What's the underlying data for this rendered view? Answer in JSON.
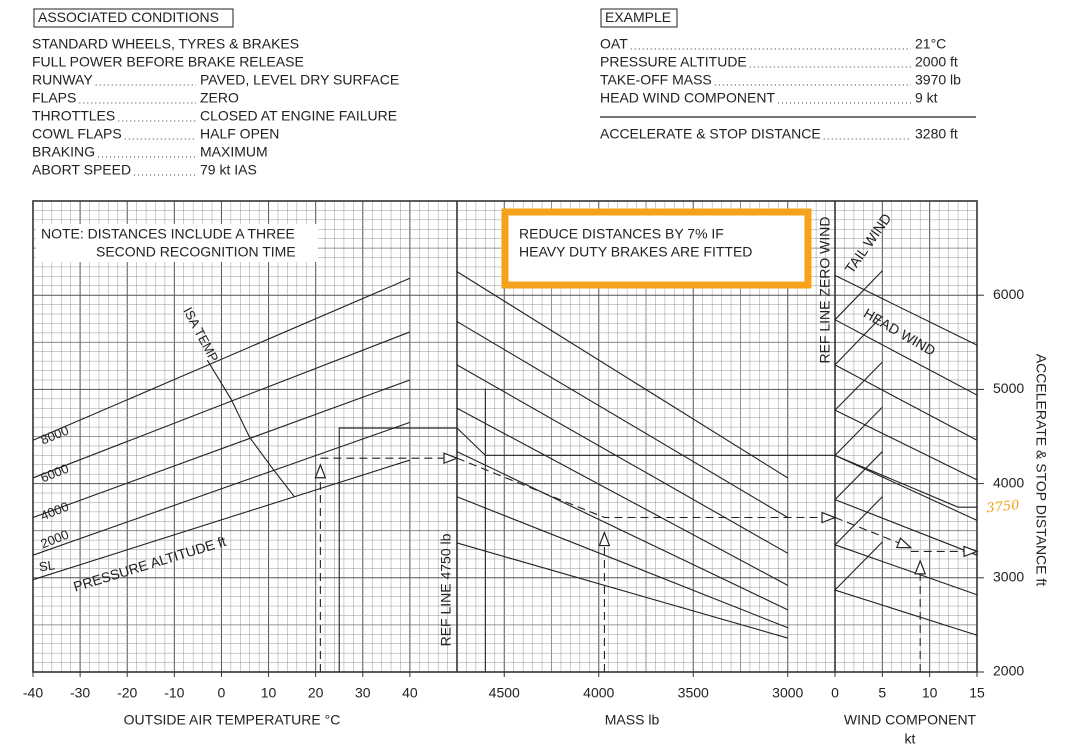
{
  "associated_conditions": {
    "title": "ASSOCIATED CONDITIONS",
    "items": [
      {
        "label": "STANDARD WHEELS, TYRES & BRAKES"
      },
      {
        "label": "FULL POWER BEFORE BRAKE RELEASE"
      },
      {
        "label": "RUNWAY",
        "value": "PAVED, LEVEL DRY SURFACE"
      },
      {
        "label": "FLAPS",
        "value": "ZERO"
      },
      {
        "label": "THROTTLES",
        "value": "CLOSED AT ENGINE FAILURE"
      },
      {
        "label": "COWL FLAPS",
        "value": "HALF OPEN"
      },
      {
        "label": "BRAKING",
        "value": "MAXIMUM"
      },
      {
        "label": "ABORT SPEED",
        "value": "79 kt  IAS"
      }
    ]
  },
  "example": {
    "title": "EXAMPLE",
    "items": [
      {
        "label": "OAT",
        "value": "21°C"
      },
      {
        "label": "PRESSURE ALTITUDE",
        "value": "2000 ft"
      },
      {
        "label": "TAKE-OFF MASS",
        "value": "3970 lb"
      },
      {
        "label": "HEAD WIND COMPONENT",
        "value": "9 kt"
      }
    ],
    "result": {
      "label": "ACCELERATE & STOP DISTANCE",
      "value": "3280 ft"
    }
  },
  "chart_data": [
    {
      "type": "line",
      "x_label": "OUTSIDE AIR TEMPERATURE  °C",
      "xlim": [
        -40,
        50
      ],
      "xticks": [
        -40,
        -30,
        -20,
        -10,
        0,
        10,
        20,
        30,
        40
      ],
      "ylim": [
        2000,
        7000
      ],
      "grid": true,
      "note": [
        "NOTE:  DISTANCES INCLUDE A THREE",
        "SECOND RECOGNITION TIME"
      ],
      "annotation": "PRESSURE ALTITUDE  ft",
      "series": [
        {
          "name": "8000",
          "color": "#222222",
          "style": "solid",
          "x": [
            -40,
            40
          ],
          "values": [
            4460,
            6180
          ]
        },
        {
          "name": "6000",
          "color": "#222222",
          "style": "solid",
          "x": [
            -40,
            40
          ],
          "values": [
            4060,
            5610
          ]
        },
        {
          "name": "4000",
          "color": "#222222",
          "style": "solid",
          "x": [
            -40,
            40
          ],
          "values": [
            3640,
            5100
          ]
        },
        {
          "name": "2000",
          "color": "#222222",
          "style": "solid",
          "x": [
            -40,
            40
          ],
          "values": [
            3240,
            4650
          ]
        },
        {
          "name": "SL",
          "color": "#222222",
          "style": "solid",
          "x": [
            -40,
            40
          ],
          "values": [
            2980,
            4250
          ]
        },
        {
          "name": "ISA TEMP",
          "color": "#222222",
          "style": "solid",
          "x": [
            -3,
            2,
            6,
            11,
            15.5
          ],
          "values": [
            5310,
            4900,
            4490,
            4150,
            3860
          ]
        },
        {
          "color": "#f5a01a",
          "style": "solid",
          "x": [
            25,
            25,
            50
          ],
          "values": [
            2000,
            4590,
            4590
          ]
        },
        {
          "color": "#222222",
          "style": "dashed",
          "x": [
            21,
            21
          ],
          "values": [
            2000,
            4200
          ]
        },
        {
          "color": "#222222",
          "style": "dashed",
          "x": [
            21,
            50
          ],
          "values": [
            4270,
            4270
          ]
        }
      ]
    },
    {
      "type": "line",
      "x_label": "MASS   lb",
      "xlim": [
        4750,
        2750
      ],
      "xticks": [
        4500,
        4000,
        3500,
        3000
      ],
      "ylim": [
        2000,
        7000
      ],
      "grid": true,
      "ref_line": "REF LINE  4750 lb",
      "note": [
        "REDUCE DISTANCES BY 7% IF",
        "HEAVY DUTY BRAKES ARE FITTED"
      ],
      "series": [
        {
          "color": "#222222",
          "style": "solid",
          "x": [
            4750,
            3000
          ],
          "values": [
            6250,
            4060
          ]
        },
        {
          "color": "#222222",
          "style": "solid",
          "x": [
            4750,
            3000
          ],
          "values": [
            5720,
            3640
          ]
        },
        {
          "color": "#222222",
          "style": "solid",
          "x": [
            4750,
            3000
          ],
          "values": [
            5260,
            3260
          ]
        },
        {
          "color": "#222222",
          "style": "solid",
          "x": [
            4750,
            3000
          ],
          "values": [
            4800,
            2920
          ]
        },
        {
          "color": "#222222",
          "style": "solid",
          "x": [
            4750,
            3000
          ],
          "values": [
            4340,
            2660
          ]
        },
        {
          "color": "#222222",
          "style": "solid",
          "x": [
            4750,
            3000
          ],
          "values": [
            3860,
            2470
          ]
        },
        {
          "color": "#222222",
          "style": "solid",
          "x": [
            4750,
            3000
          ],
          "values": [
            3370,
            2360
          ]
        },
        {
          "color": "#f5a01a",
          "style": "solid",
          "x": [
            4600,
            4600
          ],
          "values": [
            5010,
            2000
          ]
        },
        {
          "color": "#f5a01a",
          "style": "solid",
          "x": [
            4750,
            4600,
            2750
          ],
          "values": [
            4590,
            4300,
            4300
          ]
        },
        {
          "color": "#222222",
          "style": "dashed",
          "x": [
            4750,
            3970,
            2750
          ],
          "values": [
            4270,
            3640,
            3640
          ]
        },
        {
          "color": "#222222",
          "style": "dashed",
          "x": [
            3970,
            3970
          ],
          "values": [
            2000,
            3480
          ]
        }
      ]
    },
    {
      "type": "line",
      "x_label": [
        "WIND COMPONENT",
        "kt"
      ],
      "y_label": "ACCELERATE & STOP DISTANCE   ft",
      "xlim": [
        0,
        15
      ],
      "xticks": [
        0,
        5,
        10,
        15
      ],
      "ylim": [
        2000,
        7000
      ],
      "yticks": [
        2000,
        3000,
        4000,
        5000,
        6000
      ],
      "grid": true,
      "ref_line": "REF LINE  ZERO WIND",
      "annotations": [
        "TAIL WIND",
        "HEAD WIND"
      ],
      "series": [
        {
          "color": "#222222",
          "style": "solid",
          "x": [
            0,
            15
          ],
          "values": [
            6210,
            5470
          ]
        },
        {
          "color": "#222222",
          "style": "solid",
          "x": [
            0,
            15
          ],
          "values": [
            5740,
            4940
          ]
        },
        {
          "color": "#222222",
          "style": "solid",
          "x": [
            0,
            15
          ],
          "values": [
            5260,
            4460
          ]
        },
        {
          "color": "#222222",
          "style": "solid",
          "x": [
            0,
            15
          ],
          "values": [
            4780,
            4040
          ]
        },
        {
          "color": "#222222",
          "style": "solid",
          "x": [
            0,
            15
          ],
          "values": [
            4300,
            3610
          ]
        },
        {
          "color": "#222222",
          "style": "solid",
          "x": [
            0,
            15
          ],
          "values": [
            3830,
            3240
          ]
        },
        {
          "color": "#222222",
          "style": "solid",
          "x": [
            0,
            15
          ],
          "values": [
            3350,
            2820
          ]
        },
        {
          "color": "#222222",
          "style": "solid",
          "x": [
            0,
            15
          ],
          "values": [
            2870,
            2390
          ]
        },
        {
          "color": "#222222",
          "style": "solid",
          "x": [
            0,
            5
          ],
          "values": [
            5740,
            6260
          ]
        },
        {
          "color": "#222222",
          "style": "solid",
          "x": [
            0,
            5
          ],
          "values": [
            5260,
            5780
          ]
        },
        {
          "color": "#222222",
          "style": "solid",
          "x": [
            0,
            5
          ],
          "values": [
            4780,
            5290
          ]
        },
        {
          "color": "#222222",
          "style": "solid",
          "x": [
            0,
            5
          ],
          "values": [
            4300,
            4810
          ]
        },
        {
          "color": "#222222",
          "style": "solid",
          "x": [
            0,
            5
          ],
          "values": [
            3830,
            4340
          ]
        },
        {
          "color": "#222222",
          "style": "solid",
          "x": [
            0,
            5
          ],
          "values": [
            3350,
            3860
          ]
        },
        {
          "color": "#222222",
          "style": "solid",
          "x": [
            0,
            5
          ],
          "values": [
            2870,
            3380
          ]
        },
        {
          "color": "#f5a01a",
          "style": "solid",
          "x": [
            0,
            13,
            15
          ],
          "values": [
            4300,
            3750,
            3750
          ]
        },
        {
          "color": "#222222",
          "style": "dashed",
          "x": [
            0,
            8
          ],
          "values": [
            3640,
            3320
          ]
        },
        {
          "color": "#222222",
          "style": "dashed",
          "x": [
            8,
            15
          ],
          "values": [
            3280,
            3280
          ]
        },
        {
          "color": "#222222",
          "style": "dashed",
          "x": [
            9,
            9
          ],
          "values": [
            2000,
            3180
          ]
        }
      ]
    }
  ]
}
